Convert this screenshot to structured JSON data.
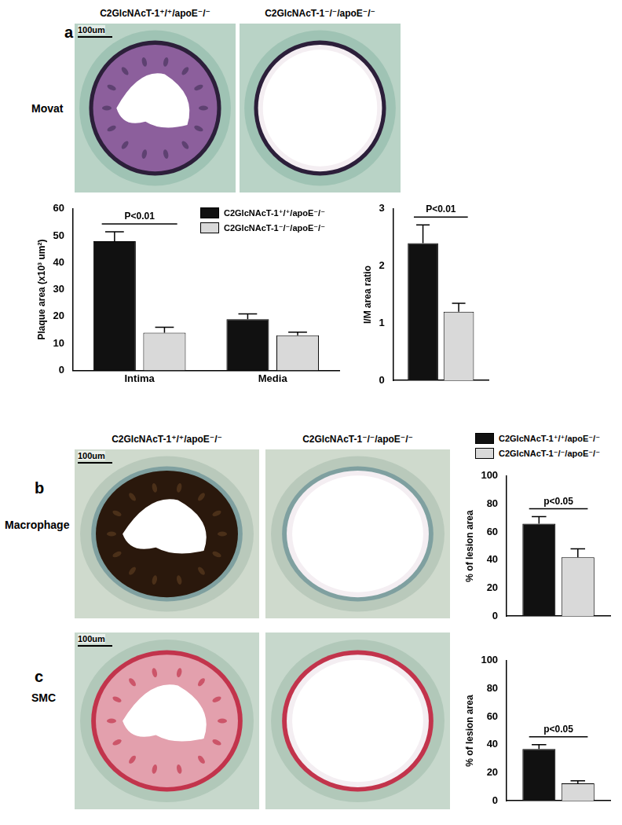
{
  "figure": {
    "panels": [
      {
        "label": "a",
        "stain": "Movat",
        "scale_bar": "100um",
        "headers": [
          "C2GlcNAcT-1⁺/⁺/apoE⁻/⁻",
          "C2GlcNAcT-1⁻/⁻/apoE⁻/⁻"
        ]
      },
      {
        "label": "b",
        "stain": "Macrophage",
        "scale_bar": "100um",
        "headers": [
          "C2GlcNAcT-1⁺/⁺/apoE⁻/⁻",
          "C2GlcNAcT-1⁻/⁻/apoE⁻/⁻"
        ]
      },
      {
        "label": "c",
        "stain": "SMC",
        "scale_bar": "100um"
      }
    ]
  },
  "chart_data": [
    {
      "type": "bar",
      "categories": [
        "Intima",
        "Media"
      ],
      "y_label": "Plaque area (x10³ um²)",
      "ylim": [
        0,
        60
      ],
      "yticks": [
        0,
        10,
        20,
        30,
        40,
        50,
        60
      ],
      "grid": false,
      "legend": "top-right",
      "series": [
        {
          "name": "C2GlcNAcT-1⁺/⁺/apoE⁻/⁻",
          "color": "#111111",
          "values": [
            48,
            19
          ],
          "errors": [
            3.5,
            2
          ]
        },
        {
          "name": "C2GlcNAcT-1⁻/⁻/apoE⁻/⁻",
          "color": "#d9d9d9",
          "values": [
            14,
            13
          ],
          "errors": [
            2,
            1.2
          ]
        }
      ],
      "annotations": [
        {
          "text": "P<0.01",
          "category": "Intima"
        }
      ]
    },
    {
      "type": "bar",
      "categories": [
        null
      ],
      "y_label": "I/M area ratio",
      "ylim": [
        0,
        3
      ],
      "yticks": [
        0,
        1,
        2,
        3
      ],
      "grid": false,
      "tick_labels": "y",
      "series": [
        {
          "color": "#111111",
          "values": [
            2.4
          ],
          "errors": [
            0.32
          ]
        },
        {
          "color": "#d9d9d9",
          "values": [
            1.2
          ],
          "errors": [
            0.15
          ]
        }
      ],
      "annotations": [
        {
          "text": "P<0.01"
        }
      ]
    },
    {
      "type": "bar",
      "categories": [
        null
      ],
      "y_label": "% of lesion area",
      "ylim": [
        0,
        100
      ],
      "yticks": [
        0,
        20,
        40,
        60,
        80,
        100
      ],
      "grid": false,
      "tick_labels": "y",
      "legend": "top",
      "series": [
        {
          "name": "C2GlcNAcT-1⁺/⁺/apoE⁻/⁻",
          "color": "#111111",
          "values": [
            66
          ],
          "errors": [
            5
          ]
        },
        {
          "name": "C2GlcNAcT-1⁻/⁻/apoE⁻/⁻",
          "color": "#d9d9d9",
          "values": [
            42
          ],
          "errors": [
            6
          ]
        }
      ],
      "annotations": [
        {
          "text": "p<0.05"
        }
      ]
    },
    {
      "type": "bar",
      "categories": [
        null
      ],
      "y_label": "% of lesion area",
      "ylim": [
        0,
        100
      ],
      "yticks": [
        0,
        20,
        40,
        60,
        80,
        100
      ],
      "grid": false,
      "tick_labels": "y",
      "series": [
        {
          "color": "#111111",
          "values": [
            37
          ],
          "errors": [
            3
          ]
        },
        {
          "color": "#d9d9d9",
          "values": [
            12.5
          ],
          "errors": [
            1.8
          ]
        }
      ],
      "annotations": [
        {
          "text": "p<0.05"
        }
      ]
    }
  ]
}
